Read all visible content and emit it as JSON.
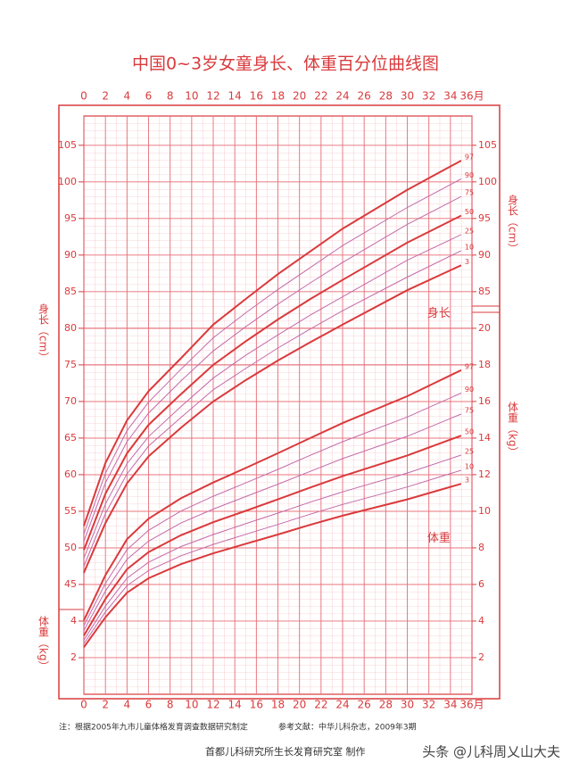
{
  "chart_data": {
    "type": "line",
    "title": "中国0~3岁女童身长、体重百分位曲线图",
    "x": [
      0,
      2,
      4,
      6,
      9,
      12,
      15,
      18,
      21,
      24,
      30,
      35
    ],
    "xlim": [
      0,
      36
    ],
    "xticks": [
      0,
      2,
      4,
      6,
      8,
      10,
      12,
      14,
      16,
      18,
      20,
      22,
      24,
      26,
      28,
      30,
      32,
      34,
      {
        "value": 36,
        "label": "36月"
      }
    ],
    "ylim": [
      30,
      109
    ],
    "yticks": [
      45,
      50,
      55,
      60,
      65,
      70,
      75,
      80,
      85,
      90,
      95,
      100,
      105
    ],
    "y_right_ticks": [
      85,
      90,
      95,
      100,
      105
    ],
    "y2lim": [
      0,
      31.6
    ],
    "y2ticks": [
      2,
      4,
      6,
      8,
      10,
      12,
      14,
      16,
      18,
      20
    ],
    "y2_left_ticks": [
      2,
      4
    ],
    "y_label_left": "身长（cm）",
    "y_label_right": "身长（cm）",
    "y2_label_left": "体重（kg）",
    "y2_label_right": "体重（kg）",
    "annotations": [
      {
        "text": "身长",
        "x": 34,
        "y": 82
      },
      {
        "text": "体重",
        "x": 34,
        "axis": "y2",
        "y": 8.5
      }
    ],
    "grid": true,
    "series": [
      {
        "name": "97",
        "color": "#d93a3c",
        "values": [
          53.0,
          61.6,
          67.4,
          71.4,
          75.9,
          80.5,
          84.0,
          87.4,
          90.5,
          93.6,
          98.9,
          102.9
        ]
      },
      {
        "name": "90",
        "color": "#c46aa8",
        "values": [
          51.9,
          60.2,
          66.0,
          69.9,
          74.4,
          78.7,
          82.1,
          85.3,
          88.3,
          91.3,
          96.5,
          100.4
        ]
      },
      {
        "name": "75",
        "color": "#c46aa8",
        "values": [
          50.9,
          58.9,
          64.5,
          68.4,
          72.8,
          76.9,
          80.2,
          83.3,
          86.2,
          89.0,
          94.2,
          98.0
        ]
      },
      {
        "name": "50",
        "color": "#d93a3c",
        "values": [
          49.7,
          57.4,
          62.9,
          66.8,
          71.0,
          75.0,
          78.2,
          81.2,
          84.0,
          86.6,
          91.7,
          95.4
        ]
      },
      {
        "name": "25",
        "color": "#c46aa8",
        "values": [
          48.6,
          56.0,
          61.5,
          65.2,
          69.3,
          73.2,
          76.3,
          79.1,
          81.8,
          84.3,
          89.3,
          92.8
        ]
      },
      {
        "name": "10",
        "color": "#c46aa8",
        "values": [
          47.5,
          54.7,
          60.1,
          63.9,
          67.8,
          71.6,
          74.5,
          77.3,
          79.9,
          82.4,
          87.0,
          90.6
        ]
      },
      {
        "name": "3",
        "color": "#d93a3c",
        "values": [
          46.6,
          53.4,
          58.8,
          62.5,
          66.4,
          70.0,
          72.9,
          75.6,
          78.1,
          80.5,
          85.2,
          88.6
        ]
      },
      {
        "name": "97",
        "color": "#d93a3c",
        "axis": "y2",
        "values": [
          4.04,
          6.51,
          8.47,
          9.59,
          10.71,
          11.57,
          12.36,
          13.17,
          14.0,
          14.82,
          16.29,
          17.71
        ]
      },
      {
        "name": "90",
        "color": "#c46aa8",
        "axis": "y2",
        "values": [
          3.75,
          6.06,
          7.9,
          8.96,
          10.01,
          10.82,
          11.55,
          12.29,
          13.06,
          13.8,
          15.15,
          16.46
        ]
      },
      {
        "name": "75",
        "color": "#c46aa8",
        "axis": "y2",
        "values": [
          3.49,
          5.64,
          7.37,
          8.37,
          9.36,
          10.12,
          10.8,
          11.48,
          12.18,
          12.88,
          14.1,
          15.31
        ]
      },
      {
        "name": "50",
        "color": "#d93a3c",
        "axis": "y2",
        "values": [
          3.21,
          5.21,
          6.83,
          7.77,
          8.69,
          9.4,
          10.02,
          10.65,
          11.3,
          11.92,
          13.05,
          14.13
        ]
      },
      {
        "name": "25",
        "color": "#c46aa8",
        "axis": "y2",
        "values": [
          2.96,
          4.82,
          6.34,
          7.21,
          8.07,
          8.73,
          9.32,
          9.9,
          10.5,
          11.06,
          12.09,
          13.07
        ]
      },
      {
        "name": "10",
        "color": "#c46aa8",
        "axis": "y2",
        "values": [
          2.76,
          4.5,
          5.93,
          6.76,
          7.57,
          8.19,
          8.74,
          9.28,
          9.84,
          10.37,
          11.33,
          12.24
        ]
      },
      {
        "name": "3",
        "color": "#d93a3c",
        "axis": "y2",
        "values": [
          2.57,
          4.21,
          5.55,
          6.34,
          7.11,
          7.7,
          8.22,
          8.73,
          9.26,
          9.76,
          10.65,
          11.5
        ]
      }
    ]
  },
  "footer": {
    "note": "注：根据2005年九市儿童体格发育调查数据研究制定",
    "reference": "参考文献：中华儿科杂志，2009年3期",
    "maker": "首都儿科研究所生长发育研究室  制作",
    "watermark": "头条 @儿科周乂山大夫"
  }
}
